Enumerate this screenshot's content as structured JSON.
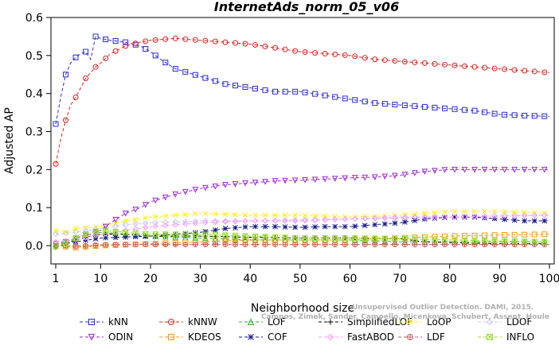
{
  "chart_data": {
    "type": "line",
    "title": "InternetAds_norm_05_v06",
    "xlabel": "Neighborhood size",
    "ylabel": "Adjusted AP",
    "xlim": [
      1,
      100
    ],
    "ylim": [
      -0.05,
      0.6
    ],
    "xticks": [
      "1",
      "10",
      "20",
      "30",
      "40",
      "50",
      "60",
      "70",
      "80",
      "90",
      "100"
    ],
    "yticks": [
      "0.0",
      "0.1",
      "0.2",
      "0.3",
      "0.4",
      "0.5",
      "0.6"
    ],
    "grid": false,
    "legend_position": "bottom",
    "watermark": "Campos, Zimek, Sander, Campello, Micenkova, Schubert, Assent, Houle",
    "watermark_sub": "Unsupervised Outlier Detection. DAMI, 2015.",
    "series": [
      {
        "name": "kNN",
        "color": "#2b2bd8",
        "marker": "square",
        "dash": "4,3",
        "points": [
          [
            1,
            0.32
          ],
          [
            2,
            0.39
          ],
          [
            3,
            0.45
          ],
          [
            4,
            0.48
          ],
          [
            5,
            0.495
          ],
          [
            6,
            0.505
          ],
          [
            7,
            0.51
          ],
          [
            8,
            0.49
          ],
          [
            9,
            0.55
          ],
          [
            10,
            0.545
          ],
          [
            12,
            0.54
          ],
          [
            15,
            0.535
          ],
          [
            18,
            0.525
          ],
          [
            20,
            0.51
          ],
          [
            22,
            0.49
          ],
          [
            25,
            0.465
          ],
          [
            30,
            0.445
          ],
          [
            35,
            0.425
          ],
          [
            40,
            0.415
          ],
          [
            45,
            0.405
          ],
          [
            50,
            0.405
          ],
          [
            55,
            0.395
          ],
          [
            60,
            0.385
          ],
          [
            65,
            0.375
          ],
          [
            70,
            0.37
          ],
          [
            75,
            0.365
          ],
          [
            80,
            0.36
          ],
          [
            85,
            0.355
          ],
          [
            90,
            0.345
          ],
          [
            95,
            0.342
          ],
          [
            100,
            0.34
          ]
        ]
      },
      {
        "name": "kNNW",
        "color": "#e02020",
        "marker": "circle",
        "dash": "4,3",
        "points": [
          [
            1,
            0.215
          ],
          [
            2,
            0.28
          ],
          [
            3,
            0.33
          ],
          [
            4,
            0.37
          ],
          [
            5,
            0.39
          ],
          [
            6,
            0.415
          ],
          [
            7,
            0.44
          ],
          [
            8,
            0.455
          ],
          [
            9,
            0.47
          ],
          [
            10,
            0.48
          ],
          [
            12,
            0.505
          ],
          [
            15,
            0.525
          ],
          [
            18,
            0.535
          ],
          [
            20,
            0.54
          ],
          [
            25,
            0.545
          ],
          [
            30,
            0.54
          ],
          [
            35,
            0.535
          ],
          [
            40,
            0.53
          ],
          [
            45,
            0.52
          ],
          [
            50,
            0.51
          ],
          [
            55,
            0.505
          ],
          [
            60,
            0.5
          ],
          [
            65,
            0.49
          ],
          [
            70,
            0.485
          ],
          [
            75,
            0.48
          ],
          [
            80,
            0.475
          ],
          [
            85,
            0.47
          ],
          [
            90,
            0.465
          ],
          [
            95,
            0.46
          ],
          [
            100,
            0.455
          ]
        ]
      },
      {
        "name": "LOF",
        "color": "#22bb22",
        "marker": "triangle",
        "dash": "4,3",
        "points": [
          [
            1,
            0.0
          ],
          [
            3,
            0.01
          ],
          [
            5,
            0.02
          ],
          [
            8,
            0.03
          ],
          [
            10,
            0.035
          ],
          [
            15,
            0.03
          ],
          [
            20,
            0.025
          ],
          [
            30,
            0.02
          ],
          [
            40,
            0.015
          ],
          [
            50,
            0.015
          ],
          [
            60,
            0.015
          ],
          [
            70,
            0.01
          ],
          [
            80,
            0.01
          ],
          [
            90,
            0.01
          ],
          [
            100,
            0.01
          ]
        ]
      },
      {
        "name": "SimplifiedLOF",
        "color": "#000000",
        "marker": "plus",
        "dash": "4,3",
        "points": [
          [
            1,
            -0.005
          ],
          [
            3,
            0.005
          ],
          [
            5,
            0.015
          ],
          [
            8,
            0.025
          ],
          [
            10,
            0.03
          ],
          [
            15,
            0.03
          ],
          [
            20,
            0.025
          ],
          [
            30,
            0.025
          ],
          [
            40,
            0.022
          ],
          [
            50,
            0.02
          ],
          [
            60,
            0.02
          ],
          [
            70,
            0.018
          ],
          [
            75,
            0.01
          ],
          [
            80,
            0.008
          ],
          [
            90,
            0.005
          ],
          [
            100,
            0.005
          ]
        ]
      },
      {
        "name": "LoOP",
        "color": "#ffee00",
        "marker": "x",
        "dash": "4,3",
        "points": [
          [
            1,
            0.04
          ],
          [
            3,
            0.035
          ],
          [
            5,
            0.045
          ],
          [
            10,
            0.05
          ],
          [
            15,
            0.065
          ],
          [
            20,
            0.075
          ],
          [
            25,
            0.08
          ],
          [
            30,
            0.085
          ],
          [
            40,
            0.08
          ],
          [
            50,
            0.08
          ],
          [
            60,
            0.075
          ],
          [
            70,
            0.08
          ],
          [
            75,
            0.085
          ],
          [
            80,
            0.09
          ],
          [
            90,
            0.09
          ],
          [
            100,
            0.085
          ]
        ]
      },
      {
        "name": "LDOF",
        "color": "#c8c8f0",
        "marker": "diamond",
        "dash": "4,3",
        "points": [
          [
            1,
            0.03
          ],
          [
            5,
            0.035
          ],
          [
            10,
            0.045
          ],
          [
            15,
            0.055
          ],
          [
            20,
            0.06
          ],
          [
            30,
            0.065
          ],
          [
            40,
            0.065
          ],
          [
            50,
            0.068
          ],
          [
            60,
            0.07
          ],
          [
            70,
            0.072
          ],
          [
            80,
            0.075
          ],
          [
            90,
            0.078
          ],
          [
            100,
            0.08
          ]
        ]
      },
      {
        "name": "ODIN",
        "color": "#9a28d8",
        "marker": "triangle-down",
        "dash": "4,3",
        "points": [
          [
            1,
            0.005
          ],
          [
            3,
            0.01
          ],
          [
            5,
            0.02
          ],
          [
            8,
            0.03
          ],
          [
            10,
            0.04
          ],
          [
            12,
            0.06
          ],
          [
            15,
            0.085
          ],
          [
            18,
            0.1
          ],
          [
            20,
            0.115
          ],
          [
            25,
            0.135
          ],
          [
            30,
            0.15
          ],
          [
            35,
            0.16
          ],
          [
            40,
            0.165
          ],
          [
            45,
            0.17
          ],
          [
            50,
            0.172
          ],
          [
            55,
            0.175
          ],
          [
            60,
            0.178
          ],
          [
            65,
            0.18
          ],
          [
            70,
            0.185
          ],
          [
            75,
            0.195
          ],
          [
            80,
            0.2
          ],
          [
            85,
            0.2
          ],
          [
            90,
            0.2
          ],
          [
            95,
            0.2
          ],
          [
            100,
            0.2
          ]
        ]
      },
      {
        "name": "KDEOS",
        "color": "#ff9900",
        "marker": "square",
        "dash": "4,3",
        "points": [
          [
            1,
            0.0
          ],
          [
            5,
            -0.005
          ],
          [
            10,
            0.0
          ],
          [
            20,
            0.005
          ],
          [
            30,
            0.01
          ],
          [
            40,
            0.015
          ],
          [
            50,
            0.015
          ],
          [
            60,
            0.015
          ],
          [
            70,
            0.02
          ],
          [
            80,
            0.025
          ],
          [
            90,
            0.028
          ],
          [
            100,
            0.03
          ]
        ]
      },
      {
        "name": "COF",
        "color": "#1a1a8c",
        "marker": "asterisk",
        "dash": "4,3",
        "points": [
          [
            1,
            0.0
          ],
          [
            5,
            0.01
          ],
          [
            10,
            0.02
          ],
          [
            20,
            0.025
          ],
          [
            30,
            0.035
          ],
          [
            35,
            0.045
          ],
          [
            40,
            0.05
          ],
          [
            45,
            0.05
          ],
          [
            50,
            0.048
          ],
          [
            55,
            0.05
          ],
          [
            60,
            0.05
          ],
          [
            65,
            0.055
          ],
          [
            70,
            0.06
          ],
          [
            75,
            0.07
          ],
          [
            80,
            0.075
          ],
          [
            85,
            0.075
          ],
          [
            90,
            0.07
          ],
          [
            95,
            0.065
          ],
          [
            100,
            0.065
          ]
        ]
      },
      {
        "name": "FastABOD",
        "color": "#ff99ff",
        "marker": "diamond",
        "dash": "4,3",
        "points": [
          [
            1,
            0.01
          ],
          [
            5,
            0.015
          ],
          [
            10,
            0.03
          ],
          [
            15,
            0.04
          ],
          [
            20,
            0.05
          ],
          [
            25,
            0.055
          ],
          [
            30,
            0.06
          ],
          [
            40,
            0.065
          ],
          [
            50,
            0.065
          ],
          [
            60,
            0.07
          ],
          [
            70,
            0.075
          ],
          [
            80,
            0.075
          ],
          [
            90,
            0.078
          ],
          [
            100,
            0.08
          ]
        ]
      },
      {
        "name": "LDF",
        "color": "#c06060",
        "marker": "circle-plus",
        "dash": "4,3",
        "points": [
          [
            1,
            0.0
          ],
          [
            3,
            0.0
          ],
          [
            5,
            -0.002
          ],
          [
            8,
            0.0
          ],
          [
            10,
            0.002
          ],
          [
            15,
            0.003
          ],
          [
            20,
            0.003
          ],
          [
            30,
            0.003
          ],
          [
            40,
            0.003
          ],
          [
            50,
            0.003
          ],
          [
            60,
            0.003
          ],
          [
            70,
            0.003
          ],
          [
            80,
            0.003
          ],
          [
            90,
            0.003
          ],
          [
            100,
            0.003
          ]
        ]
      },
      {
        "name": "INFLO",
        "color": "#99dd33",
        "marker": "box-x",
        "dash": "4,3",
        "points": [
          [
            1,
            -0.002
          ],
          [
            3,
            0.005
          ],
          [
            5,
            0.02
          ],
          [
            8,
            0.035
          ],
          [
            10,
            0.04
          ],
          [
            15,
            0.035
          ],
          [
            20,
            0.03
          ],
          [
            30,
            0.03
          ],
          [
            40,
            0.025
          ],
          [
            50,
            0.02
          ],
          [
            60,
            0.02
          ],
          [
            70,
            0.018
          ],
          [
            80,
            0.015
          ],
          [
            90,
            0.012
          ],
          [
            100,
            0.01
          ]
        ]
      }
    ]
  }
}
